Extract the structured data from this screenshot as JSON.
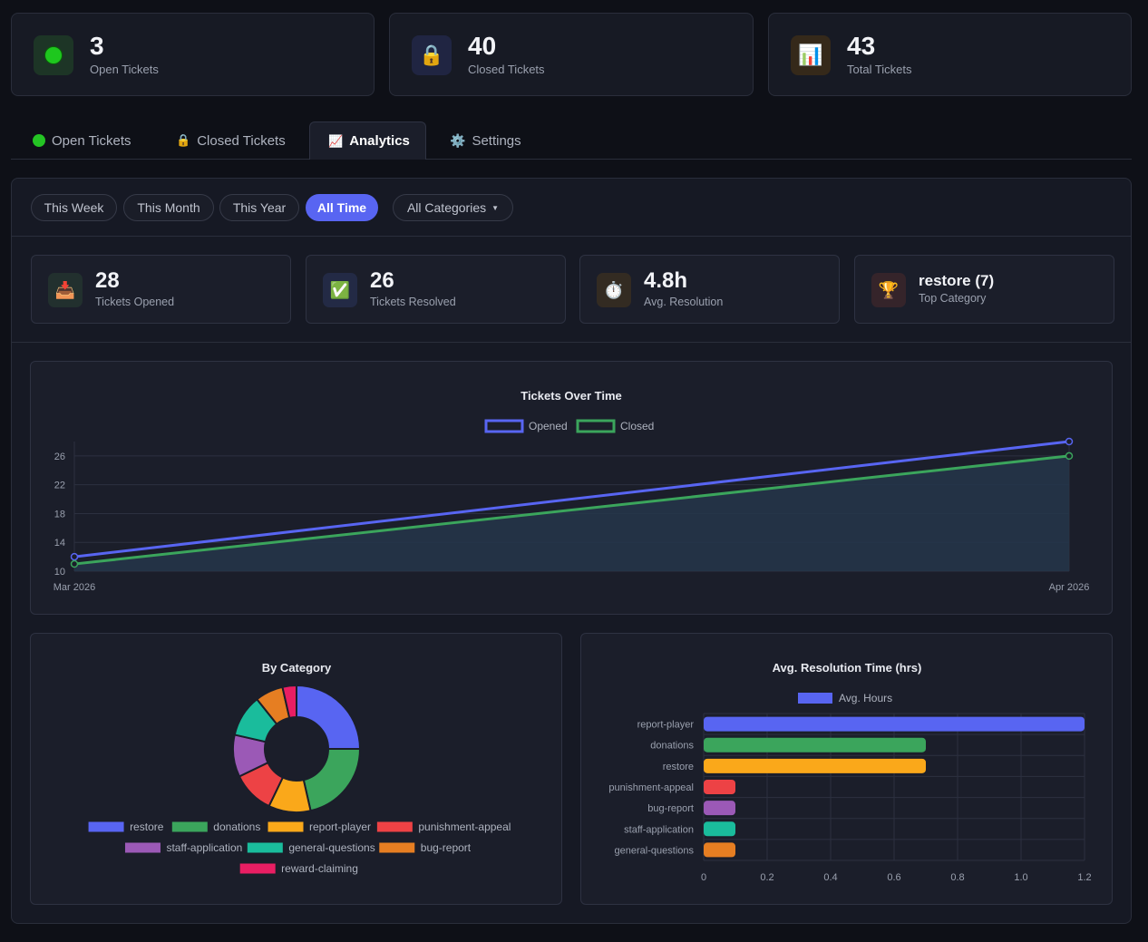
{
  "summary": {
    "open": {
      "value": "3",
      "label": "Open Tickets",
      "icon": "green-circle-icon"
    },
    "closed": {
      "value": "40",
      "label": "Closed Tickets",
      "icon": "lock-icon"
    },
    "total": {
      "value": "43",
      "label": "Total Tickets",
      "icon": "bar-chart-icon"
    }
  },
  "tabs": [
    {
      "label": "Open Tickets",
      "icon": "green-circle-icon"
    },
    {
      "label": "Closed Tickets",
      "icon": "lock-icon"
    },
    {
      "label": "Analytics",
      "icon": "chart-increasing-icon",
      "active": true
    },
    {
      "label": "Settings",
      "icon": "gear-icon"
    }
  ],
  "filters": {
    "ranges": [
      "This Week",
      "This Month",
      "This Year",
      "All Time"
    ],
    "active_range": "All Time",
    "category_select": "All Categories"
  },
  "kpis": [
    {
      "value": "28",
      "label": "Tickets Opened",
      "icon": "inbox-tray-icon"
    },
    {
      "value": "26",
      "label": "Tickets Resolved",
      "icon": "check-mark-icon"
    },
    {
      "value": "4.8h",
      "label": "Avg. Resolution",
      "icon": "stopwatch-icon"
    },
    {
      "value": "restore (7)",
      "label": "Top Category",
      "icon": "trophy-icon"
    }
  ],
  "colors": {
    "accent": "#5865f2",
    "opened": "#5865f2",
    "closed": "#3ba55c",
    "background": "#0e1017"
  },
  "chart_data": [
    {
      "type": "line",
      "title": "Tickets Over Time",
      "x": [
        "Mar 2026",
        "Apr 2026"
      ],
      "series": [
        {
          "name": "Opened",
          "values": [
            12,
            28
          ],
          "color": "#5865f2"
        },
        {
          "name": "Closed",
          "values": [
            11,
            26
          ],
          "color": "#3ba55c"
        }
      ],
      "ylim": [
        10,
        28
      ],
      "yticks": [
        10,
        14,
        18,
        22,
        26
      ],
      "legend": "top",
      "grid": true
    },
    {
      "type": "pie",
      "title": "By Category",
      "categories": [
        "restore",
        "donations",
        "report-player",
        "punishment-appeal",
        "staff-application",
        "general-questions",
        "bug-report",
        "reward-claiming"
      ],
      "values": [
        7,
        6,
        3,
        3,
        3,
        3,
        2,
        1
      ],
      "colors": [
        "#5865f2",
        "#3ba55c",
        "#faa81a",
        "#ed4245",
        "#9b59b6",
        "#1abc9c",
        "#e67e22",
        "#e91e63"
      ],
      "legend": "bottom"
    },
    {
      "type": "bar",
      "orientation": "horizontal",
      "title": "Avg. Resolution Time (hrs)",
      "categories": [
        "report-player",
        "donations",
        "restore",
        "punishment-appeal",
        "bug-report",
        "staff-application",
        "general-questions"
      ],
      "series": [
        {
          "name": "Avg. Hours",
          "values": [
            1.2,
            0.7,
            0.7,
            0.1,
            0.1,
            0.1,
            0.1
          ]
        }
      ],
      "colors": [
        "#5865f2",
        "#3ba55c",
        "#faa81a",
        "#ed4245",
        "#9b59b6",
        "#1abc9c",
        "#e67e22"
      ],
      "xlim": [
        0,
        1.2
      ],
      "xticks": [
        0,
        0.2,
        0.4,
        0.6,
        0.8,
        1.0,
        1.2
      ],
      "xtick_labels": [
        "0",
        "0.2",
        "0.4",
        "0.6",
        "0.8",
        "1.0",
        "1.2"
      ],
      "legend": "top",
      "grid": true
    }
  ]
}
